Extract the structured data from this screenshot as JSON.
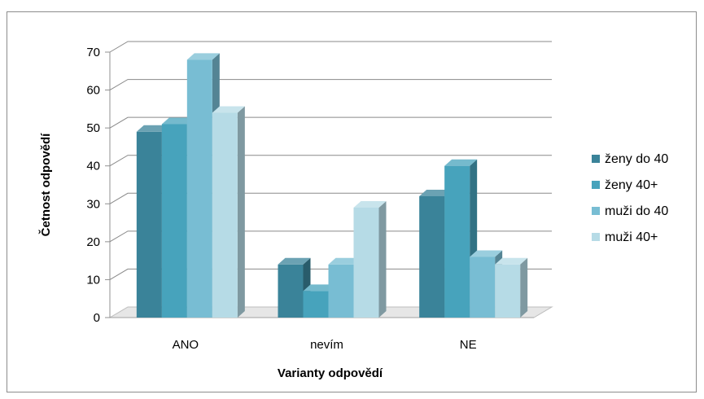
{
  "chart_data": {
    "type": "bar",
    "style": "3d-clustered-column",
    "categories": [
      "ANO",
      "nevím",
      "NE"
    ],
    "series": [
      {
        "name": "ženy do 40",
        "values": [
          49,
          14,
          32
        ],
        "color": "#3A8399"
      },
      {
        "name": "ženy 40+",
        "values": [
          51,
          7,
          40
        ],
        "color": "#47A3BC"
      },
      {
        "name": "muži do 40",
        "values": [
          68,
          14,
          16
        ],
        "color": "#78BDD3"
      },
      {
        "name": "muži 40+",
        "values": [
          54,
          29,
          14
        ],
        "color": "#B6DBE6"
      }
    ],
    "xlabel": "Varianty odpovědí",
    "ylabel": "Četnost odpovědí",
    "ylim": [
      0,
      70
    ],
    "yticks": [
      0,
      10,
      20,
      30,
      40,
      50,
      60,
      70
    ],
    "grid": true,
    "legend_position": "right"
  }
}
